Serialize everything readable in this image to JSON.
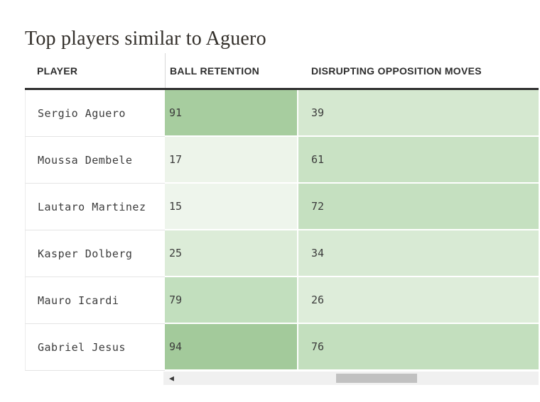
{
  "title": "Top players similar to Aguero",
  "chart_data": {
    "type": "table",
    "title": "Top players similar to Aguero",
    "columns": [
      "PLAYER",
      "BALL RETENTION",
      "DISRUPTING OPPOSITION MOVES"
    ],
    "rows": [
      {
        "player": "Sergio Aguero",
        "ball_retention": 91,
        "disrupting_opposition_moves": 39,
        "cell_colors": [
          "#a7cd9f",
          "#d5e8d0"
        ]
      },
      {
        "player": "Moussa Dembele",
        "ball_retention": 17,
        "disrupting_opposition_moves": 61,
        "cell_colors": [
          "#edf4ea",
          "#c9e2c4"
        ]
      },
      {
        "player": "Lautaro Martinez",
        "ball_retention": 15,
        "disrupting_opposition_moves": 72,
        "cell_colors": [
          "#eef5ec",
          "#c5e0c0"
        ]
      },
      {
        "player": "Kasper Dolberg",
        "ball_retention": 25,
        "disrupting_opposition_moves": 34,
        "cell_colors": [
          "#dcecd8",
          "#d8ead4"
        ]
      },
      {
        "player": "Mauro Icardi",
        "ball_retention": 79,
        "disrupting_opposition_moves": 26,
        "cell_colors": [
          "#c2dfbe",
          "#deedda"
        ]
      },
      {
        "player": "Gabriel Jesus",
        "ball_retention": 94,
        "disrupting_opposition_moves": 76,
        "cell_colors": [
          "#a3ca9b",
          "#c3dfbe"
        ]
      }
    ],
    "value_range": [
      0,
      100
    ],
    "shading": "single-hue green heatmap, darker = higher value",
    "layout": {
      "grid": false,
      "heatmap_columns": [
        "BALL RETENTION",
        "DISRUPTING OPPOSITION MOVES"
      ]
    }
  },
  "scrollbar": {
    "left_arrow_icon": "◀",
    "track_color": "#f0f0f0",
    "thumb_color": "#c1c1c1"
  },
  "colors": {
    "header_rule": "#2e2e2e",
    "row_border": "#e4e4e4",
    "title_text": "#322e29",
    "body_text": "#3c3c3c"
  }
}
